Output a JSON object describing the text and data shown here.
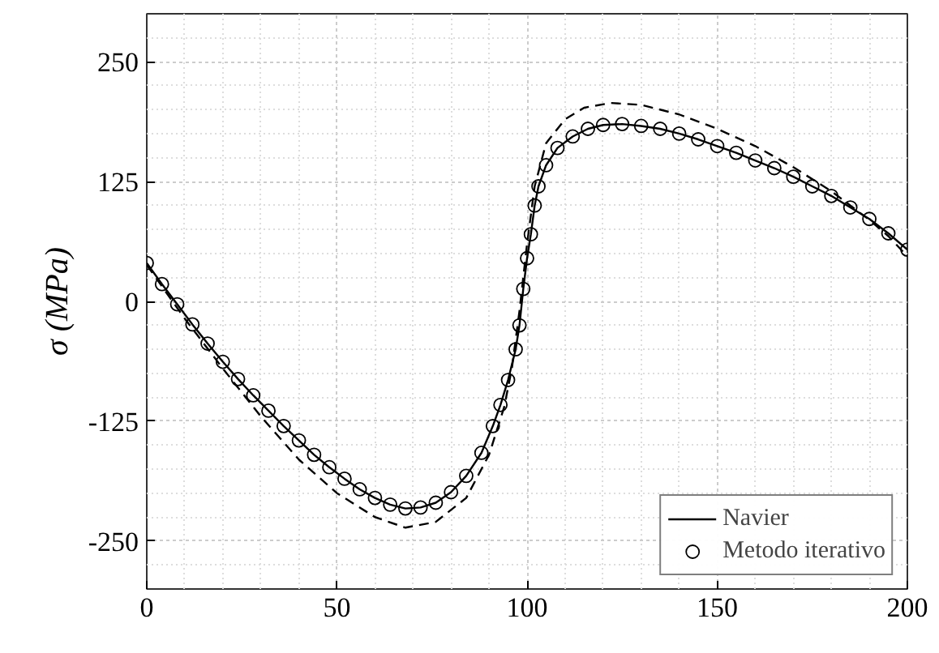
{
  "chart_data": {
    "type": "line",
    "ylabel": "σ (MPa)",
    "xlim": [
      0,
      200
    ],
    "ylim": [
      -300,
      300
    ],
    "xticks": [
      0,
      50,
      100,
      150,
      200
    ],
    "yticks": [
      -250,
      -125,
      0,
      125,
      250
    ],
    "grid": true,
    "legend": "bottom right",
    "series": [
      {
        "name": "Navier",
        "line_style": "solid",
        "color": "#000000",
        "x": [
          0,
          4,
          8,
          12,
          16,
          20,
          24,
          28,
          32,
          36,
          40,
          44,
          48,
          52,
          56,
          60,
          64,
          68,
          72,
          76,
          80,
          84,
          88,
          91,
          93,
          95,
          97,
          98,
          99,
          100,
          101,
          102,
          103,
          105,
          108,
          112,
          116,
          120,
          125,
          130,
          135,
          140,
          145,
          150,
          155,
          160,
          165,
          170,
          175,
          180,
          185,
          190,
          195,
          200
        ],
        "values": [
          40,
          18,
          -3,
          -24,
          -44,
          -63,
          -81,
          -98,
          -114,
          -130,
          -145,
          -160,
          -173,
          -185,
          -196,
          -205,
          -212,
          -216,
          -215,
          -210,
          -199,
          -182,
          -158,
          -130,
          -108,
          -82,
          -50,
          -25,
          13,
          45,
          70,
          100,
          120,
          142,
          160,
          172,
          180,
          184,
          185,
          183,
          180,
          175,
          169,
          162,
          155,
          147,
          139,
          130,
          120,
          110,
          98,
          86,
          71,
          54
        ]
      },
      {
        "name": "Metodo iterativo",
        "type": "scatter",
        "marker": "circle",
        "color": "#000000",
        "x": [
          0,
          4,
          8,
          12,
          16,
          20,
          24,
          28,
          32,
          36,
          40,
          44,
          48,
          52,
          56,
          60,
          64,
          68,
          72,
          76,
          80,
          84,
          88,
          91,
          93,
          95,
          97,
          98,
          99,
          100,
          101,
          102,
          103,
          105,
          108,
          112,
          116,
          120,
          125,
          130,
          135,
          140,
          145,
          150,
          155,
          160,
          165,
          170,
          175,
          180,
          185,
          190,
          195,
          200
        ],
        "values": [
          40,
          18,
          -3,
          -24,
          -44,
          -63,
          -81,
          -98,
          -114,
          -130,
          -145,
          -160,
          -173,
          -185,
          -196,
          -205,
          -212,
          -216,
          -215,
          -210,
          -199,
          -182,
          -158,
          -130,
          -108,
          -82,
          -50,
          -25,
          13,
          45,
          70,
          100,
          120,
          142,
          160,
          172,
          180,
          184,
          185,
          183,
          180,
          175,
          169,
          162,
          155,
          147,
          139,
          130,
          120,
          110,
          98,
          86,
          71,
          54
        ]
      },
      {
        "line_style": "dashed",
        "color": "#000000",
        "x": [
          0,
          10,
          20,
          30,
          40,
          50,
          60,
          68,
          76,
          84,
          90,
          94,
          96,
          98,
          100,
          102,
          105,
          110,
          115,
          122,
          130,
          140,
          150,
          160,
          170,
          180,
          190,
          195,
          200
        ],
        "values": [
          38,
          -18,
          -70,
          -120,
          -165,
          -200,
          -225,
          -236,
          -230,
          -205,
          -160,
          -110,
          -70,
          -10,
          60,
          120,
          165,
          190,
          202,
          207,
          205,
          195,
          180,
          162,
          140,
          115,
          85,
          68,
          47
        ]
      }
    ]
  }
}
